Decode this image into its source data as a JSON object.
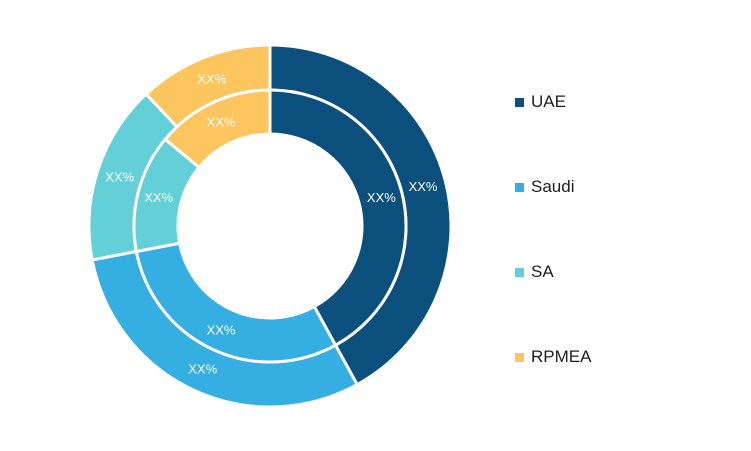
{
  "chart_data": {
    "type": "pie",
    "variant": "double-donut",
    "categories": [
      "UAE",
      "Saudi",
      "SA",
      "RPMEA"
    ],
    "colors": [
      "#0b4f7c",
      "#35aee2",
      "#62d0d6",
      "#fcc55e"
    ],
    "series": [
      {
        "ring": "outer",
        "values": [
          42,
          30,
          16,
          12
        ],
        "labels": [
          "XX%",
          "XX%",
          "XX%",
          "XX%"
        ]
      },
      {
        "ring": "inner",
        "values": [
          42,
          30,
          14,
          14
        ],
        "labels": [
          "XX%",
          "XX%",
          "XX%",
          "XX%"
        ]
      }
    ],
    "legend_position": "right"
  }
}
